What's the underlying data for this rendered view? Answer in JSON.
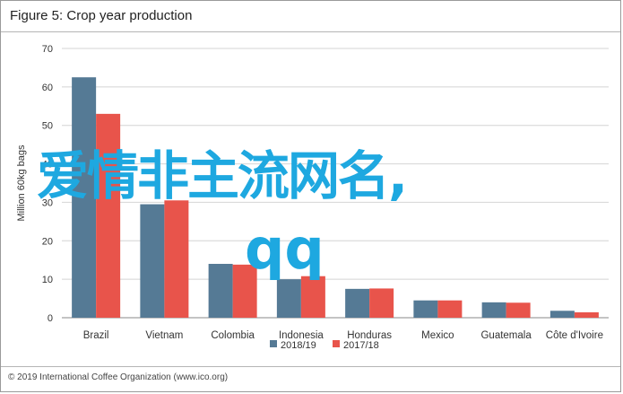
{
  "figure_title": "Figure 5: Crop year production",
  "footer": "© 2019 International Coffee Organization (www.ico.org)",
  "overlay": {
    "line1": "爱情非主流网名,",
    "line2": "qq"
  },
  "colors": {
    "series1": "#557a95",
    "series2": "#e8544b",
    "grid": "#d4d4d4",
    "overlay": "#1ea8e0"
  },
  "chart_data": {
    "type": "bar",
    "title": "Figure 5: Crop year production",
    "ylabel": "Million 60kg bags",
    "xlabel": "",
    "ylim": [
      0,
      70
    ],
    "yticks": [
      0,
      10,
      20,
      30,
      40,
      50,
      60,
      70
    ],
    "categories": [
      "Brazil",
      "Vietnam",
      "Colombia",
      "Indonesia",
      "Honduras",
      "Mexico",
      "Guatemala",
      "Côte d'Ivoire"
    ],
    "series": [
      {
        "name": "2018/19",
        "values": [
          62.5,
          29.5,
          14,
          10,
          7.5,
          4.5,
          4,
          1.8
        ]
      },
      {
        "name": "2017/18",
        "values": [
          53,
          30.5,
          13.8,
          10.8,
          7.6,
          4.5,
          3.9,
          1.4
        ]
      }
    ],
    "legend": "bottom",
    "grid": true
  }
}
